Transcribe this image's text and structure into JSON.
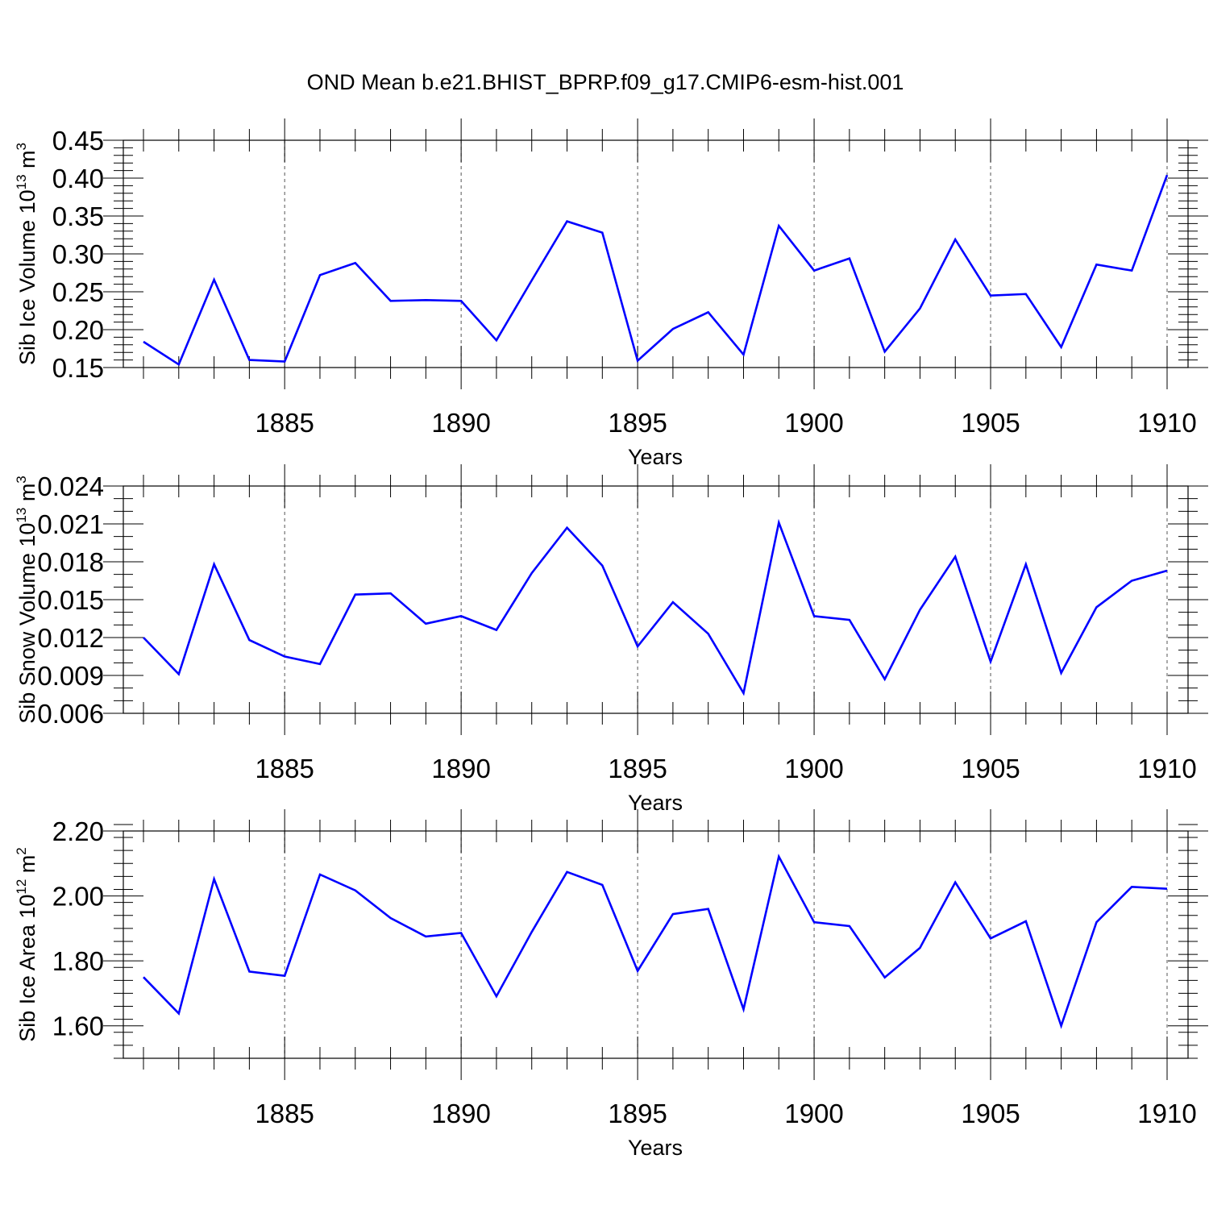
{
  "title": "OND Mean b.e21.BHIST_BPRP.f09_g17.CMIP6-esm-hist.001",
  "line_color": "#0000ff",
  "chart_data": [
    {
      "type": "line",
      "id": "ice-volume",
      "ylabel": {
        "pre": "Sib Ice Volume 10",
        "exp": "13",
        "mid": " m",
        "exp2": "3"
      },
      "xlabel": "Years",
      "xlim": [
        1881,
        1910
      ],
      "ylim": [
        0.15,
        0.45
      ],
      "yticks": [
        0.15,
        0.2,
        0.25,
        0.3,
        0.35,
        0.4,
        0.45
      ],
      "ytick_labels": [
        "0.15",
        "0.20",
        "0.25",
        "0.30",
        "0.35",
        "0.40",
        "0.45"
      ],
      "yminor_step": 0.01,
      "xticks": [
        1885,
        1890,
        1895,
        1900,
        1905,
        1910
      ],
      "xtick_labels": [
        "1885",
        "1890",
        "1895",
        "1900",
        "1905",
        "1910"
      ],
      "x": [
        1881,
        1882,
        1883,
        1884,
        1885,
        1886,
        1887,
        1888,
        1889,
        1890,
        1891,
        1892,
        1893,
        1894,
        1895,
        1896,
        1897,
        1898,
        1899,
        1900,
        1901,
        1902,
        1903,
        1904,
        1905,
        1906,
        1907,
        1908,
        1909,
        1910
      ],
      "values": [
        0.184,
        0.154,
        0.266,
        0.16,
        0.158,
        0.272,
        0.288,
        0.238,
        0.239,
        0.238,
        0.186,
        0.265,
        0.343,
        0.328,
        0.159,
        0.201,
        0.223,
        0.167,
        0.337,
        0.278,
        0.294,
        0.171,
        0.228,
        0.319,
        0.245,
        0.247,
        0.177,
        0.286,
        0.278,
        0.404
      ]
    },
    {
      "type": "line",
      "id": "snow-volume",
      "ylabel": {
        "pre": "Sib Snow Volume 10",
        "exp": "13",
        "mid": " m",
        "exp2": "3"
      },
      "xlabel": "Years",
      "xlim": [
        1881,
        1910
      ],
      "ylim": [
        0.006,
        0.024
      ],
      "yticks": [
        0.006,
        0.009,
        0.012,
        0.015,
        0.018,
        0.021,
        0.024
      ],
      "ytick_labels": [
        "0.006",
        "0.009",
        "0.012",
        "0.015",
        "0.018",
        "0.021",
        "0.024"
      ],
      "yminor_step": 0.001,
      "xticks": [
        1885,
        1890,
        1895,
        1900,
        1905,
        1910
      ],
      "xtick_labels": [
        "1885",
        "1890",
        "1895",
        "1900",
        "1905",
        "1910"
      ],
      "x": [
        1881,
        1882,
        1883,
        1884,
        1885,
        1886,
        1887,
        1888,
        1889,
        1890,
        1891,
        1892,
        1893,
        1894,
        1895,
        1896,
        1897,
        1898,
        1899,
        1900,
        1901,
        1902,
        1903,
        1904,
        1905,
        1906,
        1907,
        1908,
        1909,
        1910
      ],
      "values": [
        0.012,
        0.0091,
        0.0178,
        0.0118,
        0.0105,
        0.0099,
        0.0154,
        0.0155,
        0.0131,
        0.0137,
        0.0126,
        0.0171,
        0.0207,
        0.0177,
        0.0113,
        0.0148,
        0.0123,
        0.0076,
        0.0211,
        0.0137,
        0.0134,
        0.0087,
        0.0142,
        0.0184,
        0.0101,
        0.0178,
        0.0092,
        0.0144,
        0.0165,
        0.0173
      ]
    },
    {
      "type": "line",
      "id": "ice-area",
      "ylabel": {
        "pre": "Sib Ice Area 10",
        "exp": "12",
        "mid": " m",
        "exp2": "2"
      },
      "xlabel": "Years",
      "xlim": [
        1881,
        1910
      ],
      "ylim": [
        1.5,
        2.2
      ],
      "yticks": [
        1.6,
        1.8,
        2.0,
        2.2
      ],
      "ytick_labels": [
        "1.60",
        "1.80",
        "2.00",
        "2.20"
      ],
      "yminor_step": 0.04,
      "xticks": [
        1885,
        1890,
        1895,
        1900,
        1905,
        1910
      ],
      "xtick_labels": [
        "1885",
        "1890",
        "1895",
        "1900",
        "1905",
        "1910"
      ],
      "x": [
        1881,
        1882,
        1883,
        1884,
        1885,
        1886,
        1887,
        1888,
        1889,
        1890,
        1891,
        1892,
        1893,
        1894,
        1895,
        1896,
        1897,
        1898,
        1899,
        1900,
        1901,
        1902,
        1903,
        1904,
        1905,
        1906,
        1907,
        1908,
        1909,
        1910
      ],
      "values": [
        1.75,
        1.638,
        2.052,
        1.767,
        1.754,
        2.066,
        2.017,
        1.932,
        1.875,
        1.886,
        1.691,
        1.889,
        2.074,
        2.034,
        1.769,
        1.944,
        1.96,
        1.651,
        2.121,
        1.919,
        1.907,
        1.749,
        1.84,
        2.042,
        1.869,
        1.922,
        1.6,
        1.919,
        2.028,
        2.022
      ]
    }
  ]
}
